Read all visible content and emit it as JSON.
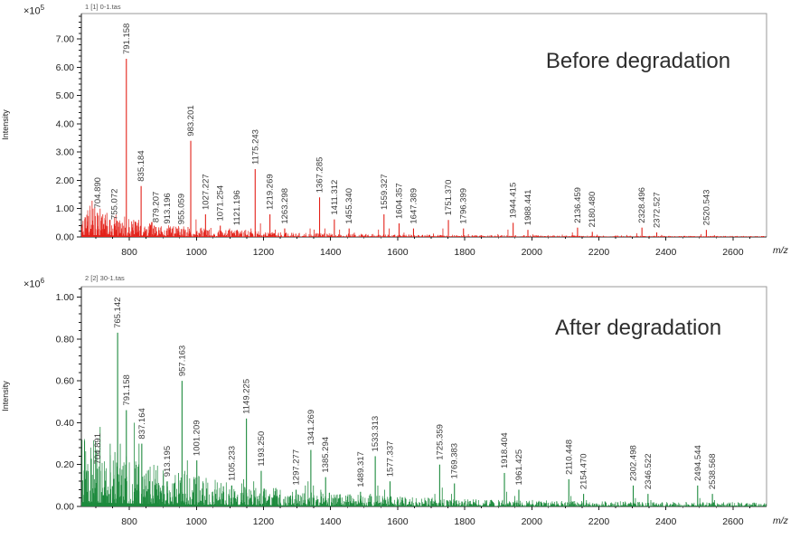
{
  "figure": {
    "background": "#ffffff"
  },
  "chart_data": [
    {
      "type": "bar",
      "variant": "mass-spectrum",
      "title": "Before degradation",
      "trace_label": "1 [1] 0-1.tas",
      "ylabel": "Intensity",
      "xlabel": "m/z",
      "y_scale_base": "×10",
      "y_scale_exp": "5",
      "color": "#e32119",
      "xlim": [
        657,
        2700
      ],
      "ylim": [
        0,
        7.9
      ],
      "x_ticks": [
        800,
        1000,
        1200,
        1400,
        1600,
        1800,
        2000,
        2200,
        2400,
        2600
      ],
      "x_minor_step": 50,
      "y_ticks": [
        0,
        1,
        2,
        3,
        4,
        5,
        6,
        7
      ],
      "y_tick_decimals": 2,
      "y_minor_step": 0.2,
      "legend": "none",
      "grid": false,
      "peaks": [
        {
          "mz": 704.89,
          "intensity": 0.85,
          "label": "704.890"
        },
        {
          "mz": 755.072,
          "intensity": 0.45,
          "label": "755.072"
        },
        {
          "mz": 791.158,
          "intensity": 6.3,
          "label": "791.158"
        },
        {
          "mz": 835.184,
          "intensity": 1.8,
          "label": "835.184"
        },
        {
          "mz": 879.207,
          "intensity": 0.35,
          "label": "879.207"
        },
        {
          "mz": 913.196,
          "intensity": 0.3,
          "label": "913.196"
        },
        {
          "mz": 955.059,
          "intensity": 0.28,
          "label": "955.059"
        },
        {
          "mz": 983.201,
          "intensity": 3.4,
          "label": "983.201"
        },
        {
          "mz": 1027.227,
          "intensity": 0.8,
          "label": "1027.227"
        },
        {
          "mz": 1071.254,
          "intensity": 0.4,
          "label": "1071.254"
        },
        {
          "mz": 1121.196,
          "intensity": 0.25,
          "label": "1121.196"
        },
        {
          "mz": 1175.243,
          "intensity": 2.4,
          "label": "1175.243"
        },
        {
          "mz": 1219.269,
          "intensity": 0.8,
          "label": "1219.269"
        },
        {
          "mz": 1263.298,
          "intensity": 0.3,
          "label": "1263.298"
        },
        {
          "mz": 1367.285,
          "intensity": 1.4,
          "label": "1367.285"
        },
        {
          "mz": 1411.312,
          "intensity": 0.62,
          "label": "1411.312"
        },
        {
          "mz": 1455.34,
          "intensity": 0.3,
          "label": "1455.340"
        },
        {
          "mz": 1559.327,
          "intensity": 0.8,
          "label": "1559.327"
        },
        {
          "mz": 1604.357,
          "intensity": 0.48,
          "label": "1604.357"
        },
        {
          "mz": 1647.389,
          "intensity": 0.3,
          "label": "1647.389"
        },
        {
          "mz": 1751.37,
          "intensity": 0.6,
          "label": "1751.370"
        },
        {
          "mz": 1796.399,
          "intensity": 0.3,
          "label": "1796.399"
        },
        {
          "mz": 1944.415,
          "intensity": 0.5,
          "label": "1944.415"
        },
        {
          "mz": 1988.441,
          "intensity": 0.25,
          "label": "1988.441"
        },
        {
          "mz": 2136.459,
          "intensity": 0.33,
          "label": "2136.459"
        },
        {
          "mz": 2180.48,
          "intensity": 0.18,
          "label": "2180.480"
        },
        {
          "mz": 2328.496,
          "intensity": 0.33,
          "label": "2328.496"
        },
        {
          "mz": 2372.527,
          "intensity": 0.16,
          "label": "2372.527"
        },
        {
          "mz": 2520.543,
          "intensity": 0.25,
          "label": "2520.543"
        }
      ],
      "extra_peaks": [
        [
          668,
          0.7
        ],
        [
          676,
          0.55
        ],
        [
          683,
          0.95
        ],
        [
          689,
          1.28
        ],
        [
          697,
          1.05
        ],
        [
          713,
          1.0
        ],
        [
          721,
          0.8
        ],
        [
          733,
          0.85
        ],
        [
          741,
          0.6
        ],
        [
          763,
          0.5
        ],
        [
          779,
          0.5
        ],
        [
          807,
          0.55
        ],
        [
          813,
          0.6
        ],
        [
          823,
          0.4
        ],
        [
          861,
          0.45
        ],
        [
          871,
          0.3
        ],
        [
          921,
          0.3
        ],
        [
          941,
          0.3
        ],
        [
          967,
          0.25
        ],
        [
          975,
          0.35
        ],
        [
          999,
          0.62
        ],
        [
          1015,
          0.28
        ],
        [
          1043,
          0.32
        ],
        [
          1099,
          0.3
        ],
        [
          1147,
          0.25
        ],
        [
          1163,
          0.3
        ],
        [
          1191,
          0.48
        ],
        [
          1235,
          0.26
        ],
        [
          1307,
          0.14
        ],
        [
          1339,
          0.3
        ],
        [
          1351,
          0.26
        ],
        [
          1383,
          0.3
        ],
        [
          1427,
          0.26
        ],
        [
          1471,
          0.15
        ],
        [
          1543,
          0.26
        ],
        [
          1575,
          0.3
        ],
        [
          1619,
          0.15
        ],
        [
          1707,
          0.12
        ],
        [
          1735,
          0.3
        ],
        [
          1811,
          0.1
        ],
        [
          1899,
          0.1
        ],
        [
          1929,
          0.26
        ],
        [
          2003,
          0.09
        ],
        [
          2091,
          0.08
        ],
        [
          2121,
          0.16
        ],
        [
          2195,
          0.08
        ],
        [
          2283,
          0.07
        ],
        [
          2313,
          0.13
        ],
        [
          2387,
          0.07
        ],
        [
          2505,
          0.1
        ],
        [
          2545,
          0.06
        ]
      ],
      "noise": {
        "seed": 42,
        "amp": 1.05,
        "decay": 210,
        "tail_amp": 0.18,
        "tail_decay": 1000,
        "floor": 0.012
      }
    },
    {
      "type": "bar",
      "variant": "mass-spectrum",
      "title": "After degradation",
      "trace_label": "2 [2] 30-1.tas",
      "ylabel": "Intensity",
      "xlabel": "m/z",
      "y_scale_base": "×10",
      "y_scale_exp": "6",
      "color": "#1d8a3d",
      "xlim": [
        657,
        2700
      ],
      "ylim": [
        0,
        1.05
      ],
      "x_ticks": [
        800,
        1000,
        1200,
        1400,
        1600,
        1800,
        2000,
        2200,
        2400,
        2600
      ],
      "x_minor_step": 50,
      "y_ticks": [
        0,
        0.2,
        0.4,
        0.6,
        0.8,
        1.0
      ],
      "y_tick_decimals": 2,
      "y_minor_step": 0.04,
      "legend": "none",
      "grid": false,
      "peaks": [
        {
          "mz": 704.891,
          "intensity": 0.18,
          "label": "704.891"
        },
        {
          "mz": 765.142,
          "intensity": 0.83,
          "label": "765.142"
        },
        {
          "mz": 791.158,
          "intensity": 0.46,
          "label": "791.158"
        },
        {
          "mz": 837.164,
          "intensity": 0.3,
          "label": "837.164"
        },
        {
          "mz": 913.195,
          "intensity": 0.12,
          "label": "913.195"
        },
        {
          "mz": 957.163,
          "intensity": 0.6,
          "label": "957.163"
        },
        {
          "mz": 1001.209,
          "intensity": 0.22,
          "label": "1001.209"
        },
        {
          "mz": 1105.233,
          "intensity": 0.1,
          "label": "1105.233"
        },
        {
          "mz": 1149.225,
          "intensity": 0.42,
          "label": "1149.225"
        },
        {
          "mz": 1193.25,
          "intensity": 0.17,
          "label": "1193.250"
        },
        {
          "mz": 1297.277,
          "intensity": 0.08,
          "label": "1297.277"
        },
        {
          "mz": 1341.269,
          "intensity": 0.27,
          "label": "1341.269"
        },
        {
          "mz": 1385.294,
          "intensity": 0.14,
          "label": "1385.294"
        },
        {
          "mz": 1489.317,
          "intensity": 0.07,
          "label": "1489.317"
        },
        {
          "mz": 1533.313,
          "intensity": 0.24,
          "label": "1533.313"
        },
        {
          "mz": 1577.337,
          "intensity": 0.12,
          "label": "1577.337"
        },
        {
          "mz": 1725.359,
          "intensity": 0.2,
          "label": "1725.359"
        },
        {
          "mz": 1769.383,
          "intensity": 0.11,
          "label": "1769.383"
        },
        {
          "mz": 1918.404,
          "intensity": 0.16,
          "label": "1918.404"
        },
        {
          "mz": 1961.425,
          "intensity": 0.08,
          "label": "1961.425"
        },
        {
          "mz": 2110.448,
          "intensity": 0.13,
          "label": "2110.448"
        },
        {
          "mz": 2154.47,
          "intensity": 0.06,
          "label": "2154.470"
        },
        {
          "mz": 2302.498,
          "intensity": 0.1,
          "label": "2302.498"
        },
        {
          "mz": 2346.522,
          "intensity": 0.06,
          "label": "2346.522"
        },
        {
          "mz": 2494.544,
          "intensity": 0.1,
          "label": "2494.544"
        },
        {
          "mz": 2538.568,
          "intensity": 0.06,
          "label": "2538.568"
        }
      ],
      "extra_peaks": [
        [
          671,
          0.16
        ],
        [
          687,
          0.15
        ],
        [
          713,
          0.38
        ],
        [
          727,
          0.17
        ],
        [
          743,
          0.3
        ],
        [
          757,
          0.26
        ],
        [
          773,
          0.3
        ],
        [
          789,
          0.2
        ],
        [
          815,
          0.4
        ],
        [
          829,
          0.3
        ],
        [
          845,
          0.13
        ],
        [
          869,
          0.12
        ],
        [
          899,
          0.1
        ],
        [
          929,
          0.11
        ],
        [
          947,
          0.16
        ],
        [
          965,
          0.17
        ],
        [
          973,
          0.22
        ],
        [
          1019,
          0.12
        ],
        [
          1061,
          0.08
        ],
        [
          1135,
          0.11
        ],
        [
          1141,
          0.13
        ],
        [
          1171,
          0.12
        ],
        [
          1207,
          0.08
        ],
        [
          1325,
          0.1
        ],
        [
          1333,
          0.12
        ],
        [
          1349,
          0.1
        ],
        [
          1371,
          0.08
        ],
        [
          1457,
          0.05
        ],
        [
          1519,
          0.06
        ],
        [
          1541,
          0.1
        ],
        [
          1561,
          0.08
        ],
        [
          1711,
          0.06
        ],
        [
          1733,
          0.09
        ],
        [
          1761,
          0.06
        ],
        [
          1925,
          0.07
        ],
        [
          1949,
          0.05
        ],
        [
          2117,
          0.05
        ],
        [
          2163,
          0.03
        ],
        [
          2309,
          0.04
        ],
        [
          2355,
          0.03
        ],
        [
          2501,
          0.04
        ],
        [
          2545,
          0.03
        ]
      ],
      "noise": {
        "seed": 99,
        "amp": 0.3,
        "decay": 320,
        "tail_amp": 0.05,
        "tail_decay": 1500,
        "floor": 0.006
      }
    }
  ]
}
